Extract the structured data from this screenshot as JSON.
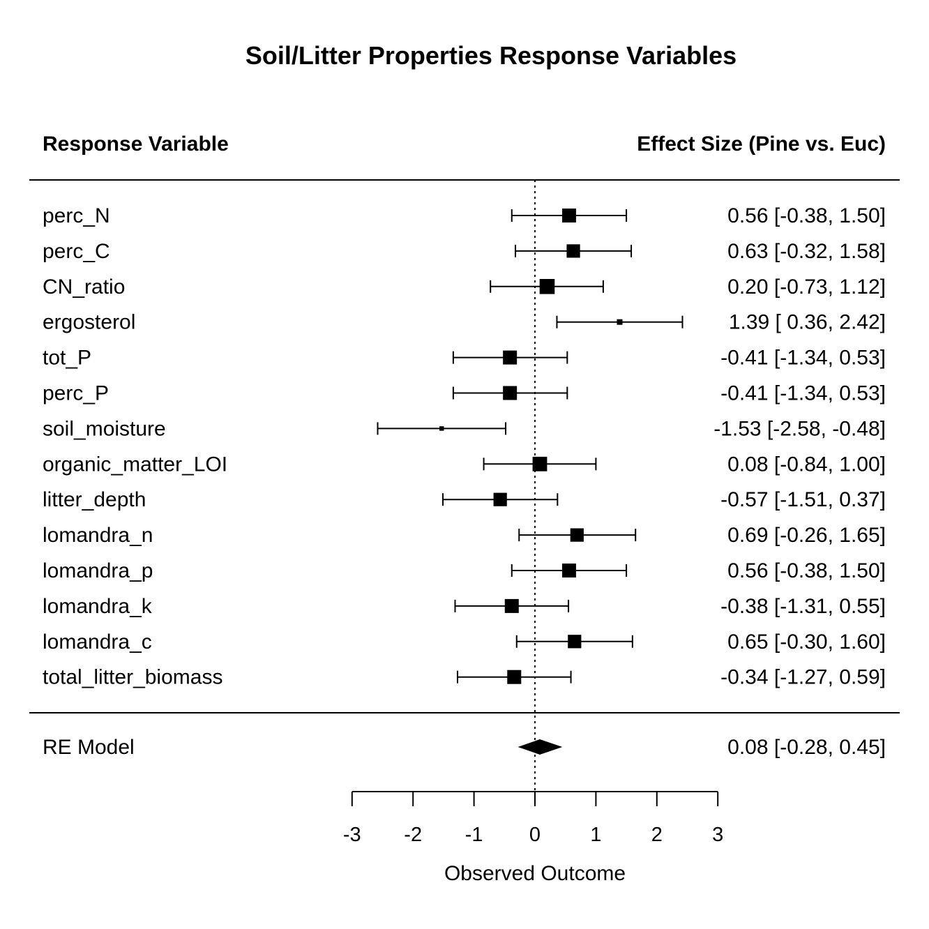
{
  "chart_data": {
    "type": "forest",
    "title": "Soil/Litter Properties Response Variables",
    "left_header": "Response Variable",
    "right_header": "Effect Size (Pine vs. Euc)",
    "xlabel": "Observed Outcome",
    "xlim": [
      -3,
      3
    ],
    "xticks": [
      -3,
      -2,
      -1,
      0,
      1,
      2,
      3
    ],
    "reference_line": 0,
    "studies": [
      {
        "name": "perc_N",
        "estimate": 0.56,
        "ci_lower": -0.38,
        "ci_upper": 1.5,
        "weight": 1.0,
        "label": "0.56 [-0.38,  1.50]"
      },
      {
        "name": "perc_C",
        "estimate": 0.63,
        "ci_lower": -0.32,
        "ci_upper": 1.58,
        "weight": 0.95,
        "label": "0.63 [-0.32,  1.58]"
      },
      {
        "name": "CN_ratio",
        "estimate": 0.2,
        "ci_lower": -0.73,
        "ci_upper": 1.12,
        "weight": 1.1,
        "label": "0.20 [-0.73,  1.12]"
      },
      {
        "name": "ergosterol",
        "estimate": 1.39,
        "ci_lower": 0.36,
        "ci_upper": 2.42,
        "weight": 0.25,
        "label": "1.39 [ 0.36,  2.42]"
      },
      {
        "name": "tot_P",
        "estimate": -0.41,
        "ci_lower": -1.34,
        "ci_upper": 0.53,
        "weight": 1.0,
        "label": "-0.41 [-1.34,  0.53]"
      },
      {
        "name": "perc_P",
        "estimate": -0.41,
        "ci_lower": -1.34,
        "ci_upper": 0.53,
        "weight": 1.0,
        "label": "-0.41 [-1.34,  0.53]"
      },
      {
        "name": "soil_moisture",
        "estimate": -1.53,
        "ci_lower": -2.58,
        "ci_upper": -0.48,
        "weight": 0.15,
        "label": "-1.53 [-2.58, -0.48]"
      },
      {
        "name": "organic_matter_LOI",
        "estimate": 0.08,
        "ci_lower": -0.84,
        "ci_upper": 1.0,
        "weight": 1.05,
        "label": "0.08 [-0.84,  1.00]"
      },
      {
        "name": "litter_depth",
        "estimate": -0.57,
        "ci_lower": -1.51,
        "ci_upper": 0.37,
        "weight": 0.95,
        "label": "-0.57 [-1.51,  0.37]"
      },
      {
        "name": "lomandra_n",
        "estimate": 0.69,
        "ci_lower": -0.26,
        "ci_upper": 1.65,
        "weight": 0.95,
        "label": "0.69 [-0.26,  1.65]"
      },
      {
        "name": "lomandra_p",
        "estimate": 0.56,
        "ci_lower": -0.38,
        "ci_upper": 1.5,
        "weight": 1.0,
        "label": "0.56 [-0.38,  1.50]"
      },
      {
        "name": "lomandra_k",
        "estimate": -0.38,
        "ci_lower": -1.31,
        "ci_upper": 0.55,
        "weight": 1.0,
        "label": "-0.38 [-1.31,  0.55]"
      },
      {
        "name": "lomandra_c",
        "estimate": 0.65,
        "ci_lower": -0.3,
        "ci_upper": 1.6,
        "weight": 0.95,
        "label": "0.65 [-0.30,  1.60]"
      },
      {
        "name": "total_litter_biomass",
        "estimate": -0.34,
        "ci_lower": -1.27,
        "ci_upper": 0.59,
        "weight": 1.0,
        "label": "-0.34 [-1.27,  0.59]"
      }
    ],
    "summary": {
      "name": "RE Model",
      "estimate": 0.08,
      "ci_lower": -0.28,
      "ci_upper": 0.45,
      "label": "0.08 [-0.28,  0.45]"
    }
  }
}
